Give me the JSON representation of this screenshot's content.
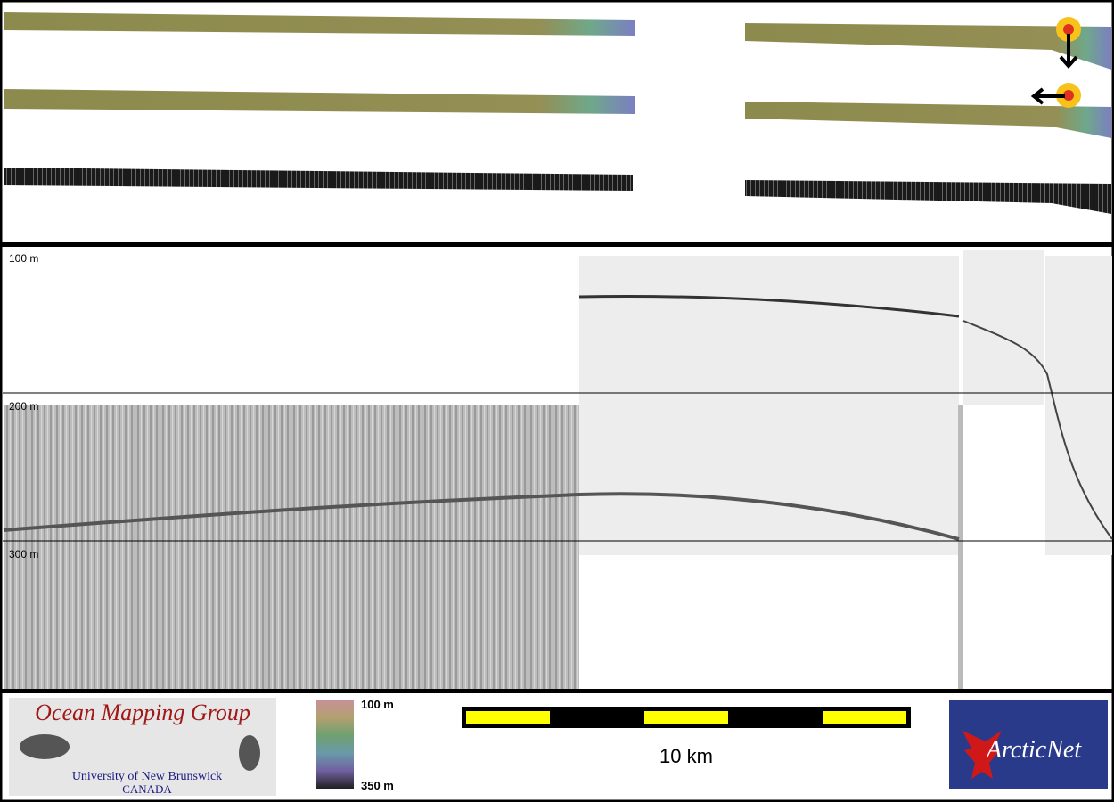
{
  "profile": {
    "depth_labels": [
      "100 m",
      "200 m",
      "300 m"
    ]
  },
  "footer": {
    "logo_left": {
      "title": "Ocean Mapping Group",
      "subtitle": "University of New Brunswick",
      "country": "CANADA"
    },
    "colorbar": {
      "top": "100 m",
      "bottom": "350 m"
    },
    "scale_bar": {
      "label": "10 km"
    },
    "logo_right": {
      "name": "ArcticNet"
    }
  }
}
